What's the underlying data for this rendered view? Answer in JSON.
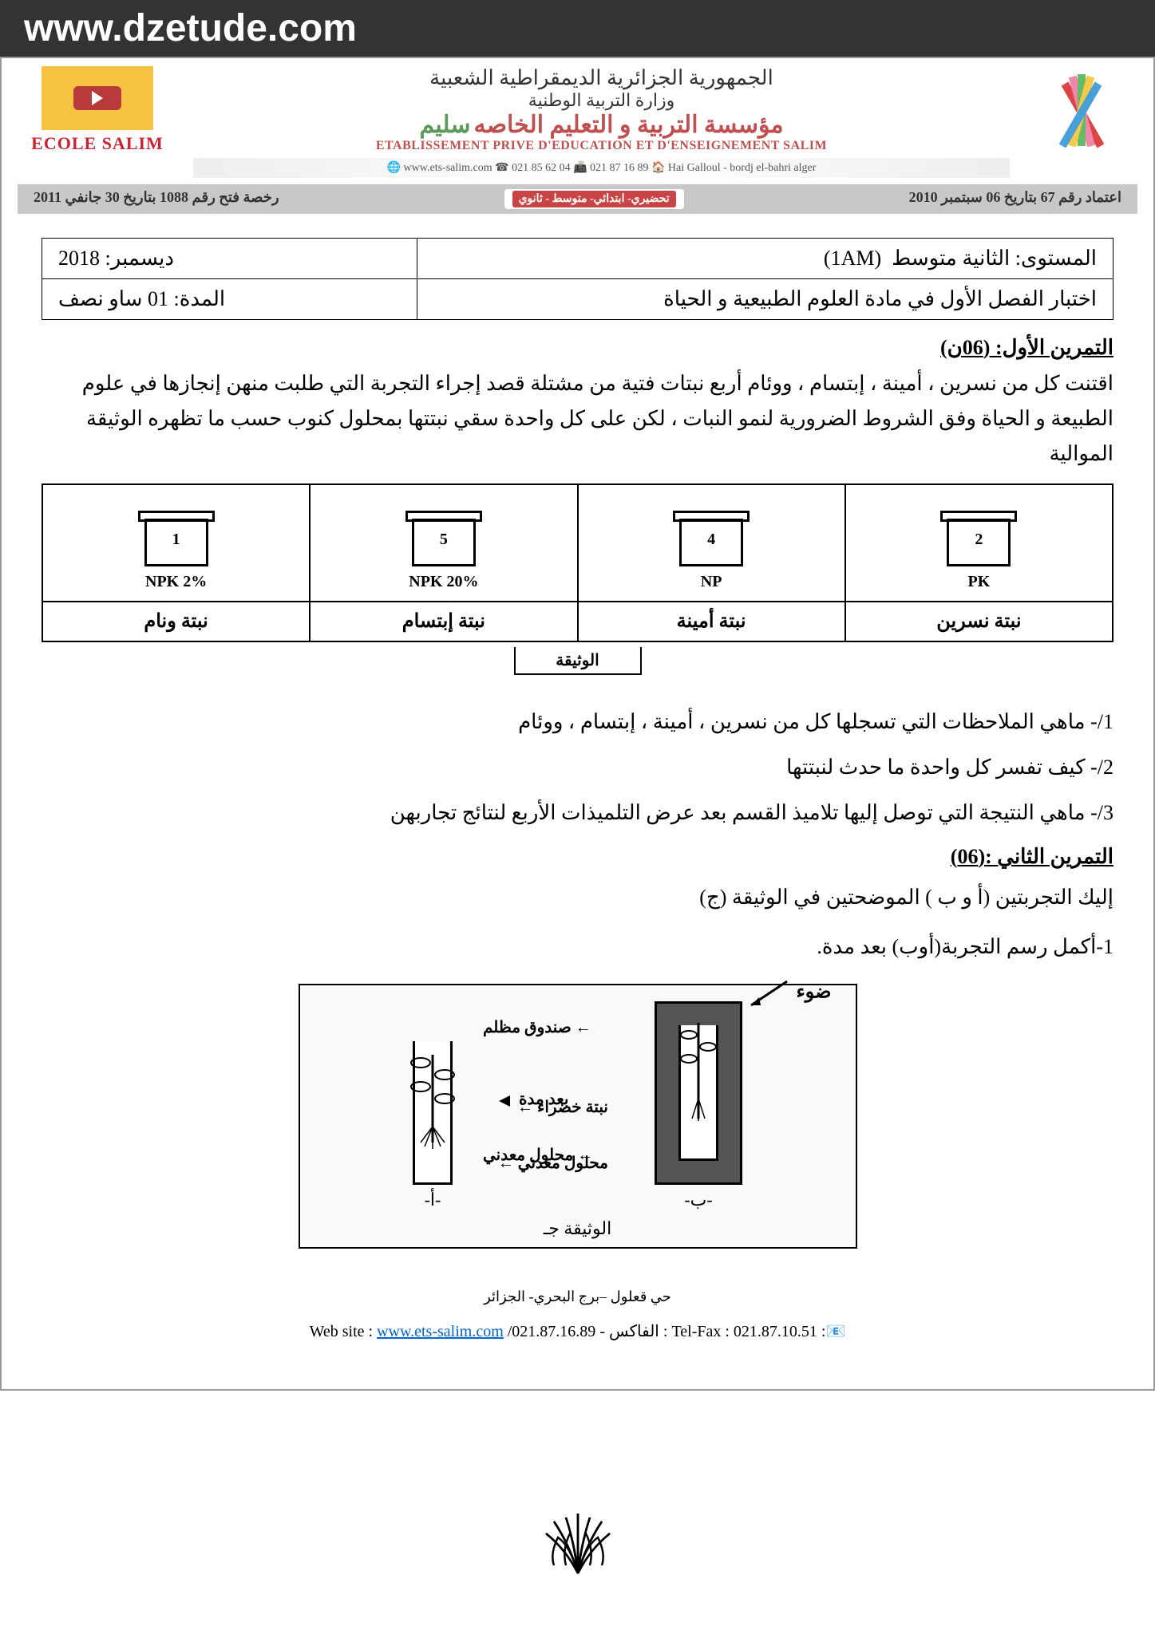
{
  "watermark": "www.dzetude.com",
  "header": {
    "republic": "الجمهورية الجزائرية الديمقراطية الشعبية",
    "ministry": "وزارة التربية الوطنية",
    "org_name_ar": "مؤسسة التربية و التعليم الخاصه",
    "org_name_brand": "سليم",
    "org_sub": "ETABLISSEMENT PRIVE D'EDUCATION ET D'ENSEIGNEMENT SALIM",
    "contacts": "🌐 www.ets-salim.com  ☎ 021 85 62 04  📠 021 87 16 89  🏠 Hai Galloul - bordj el-bahri alger",
    "logo_text": "ECOLE SALIM"
  },
  "gray_bar": {
    "right": "اعتماد رقم 67 بتاريخ 06 سبتمبر 2010",
    "levels": [
      "تحضيري- ابتدائي- متوسط - ثانوي"
    ],
    "left": "رخصة فتح رقم 1088 بتاريخ 30 جانفي 2011",
    "level_colors": [
      "#c94444"
    ]
  },
  "info": {
    "level_label": "المستوى: الثانية متوسط",
    "level_code": "(1AM)",
    "date": "ديسمبر: 2018",
    "subject": "اختبار الفصل الأول في مادة العلوم الطبيعية و الحياة",
    "duration": "المدة: 01 ساو نصف"
  },
  "ex1": {
    "title": "التمرين الأول: (06ن)",
    "paragraph": "اقتنت كل من نسرين ، أمينة ، إبتسام ، ووئام أربع نبتات فتية من مشتلة قصد إجراء التجربة التي طلبت منهن إنجازها في علوم الطبيعة و الحياة وفق الشروط الضرورية لنمو النبات ، لكن على كل واحدة سقي نبتتها بمحلول كنوب حسب ما تظهره الوثيقة الموالية",
    "plants": [
      {
        "num": "1",
        "sol": "NPK 2%",
        "owner": "نبتة ونام",
        "healthy": true
      },
      {
        "num": "5",
        "sol": "NPK 20%",
        "owner": "نبتة إبتسام",
        "healthy": false
      },
      {
        "num": "4",
        "sol": "NP",
        "owner": "نبتة أمينة",
        "healthy": true
      },
      {
        "num": "2",
        "sol": "PK",
        "owner": "نبتة نسرين",
        "healthy": true
      }
    ],
    "doc_caption": "الوثيقة",
    "q1": "1/- ماهي الملاحظات التي تسجلها كل من نسرين ، أمينة ، إبتسام ، ووئام",
    "q2": "2/- كيف تفسر كل واحدة ما حدث لنبتتها",
    "q3": "3/- ماهي النتيجة التي توصل إليها تلاميذ القسم بعد عرض التلميذات الأربع لنتائج تجاربهن"
  },
  "ex2": {
    "title": "التمرين الثاني :(06)",
    "intro": "إليك التجربتين (أ و ب ) الموضحتين في الوثيقة (ج)",
    "q1": "1-أكمل رسم التجربة(أوب) بعد مدة.",
    "labels": {
      "light": "ضوء",
      "green_plant": "نبتة خضراء",
      "mineral_sol": "محلول معدني",
      "a": "-أ-",
      "dark_box": "صندوق مظلم",
      "after": "بعد مدة",
      "mineral_sol2": "محلول معدني",
      "b": "-ب-",
      "caption": "الوثيقة جـ"
    }
  },
  "footer": {
    "address": "حي قعلول –برج البحري- الجزائر",
    "web_label": "Web site :",
    "web_url": "www.ets-salim.com",
    "fax_phone": "/021.87.16.89",
    "fax_label": "- الفاكس :",
    "telfax_label": "Tel-Fax :",
    "telfax": "021.87.10.51 :📧"
  },
  "pencil_colors": [
    "#d44",
    "#e8a",
    "#6b6",
    "#f7c948",
    "#48a0d8"
  ]
}
